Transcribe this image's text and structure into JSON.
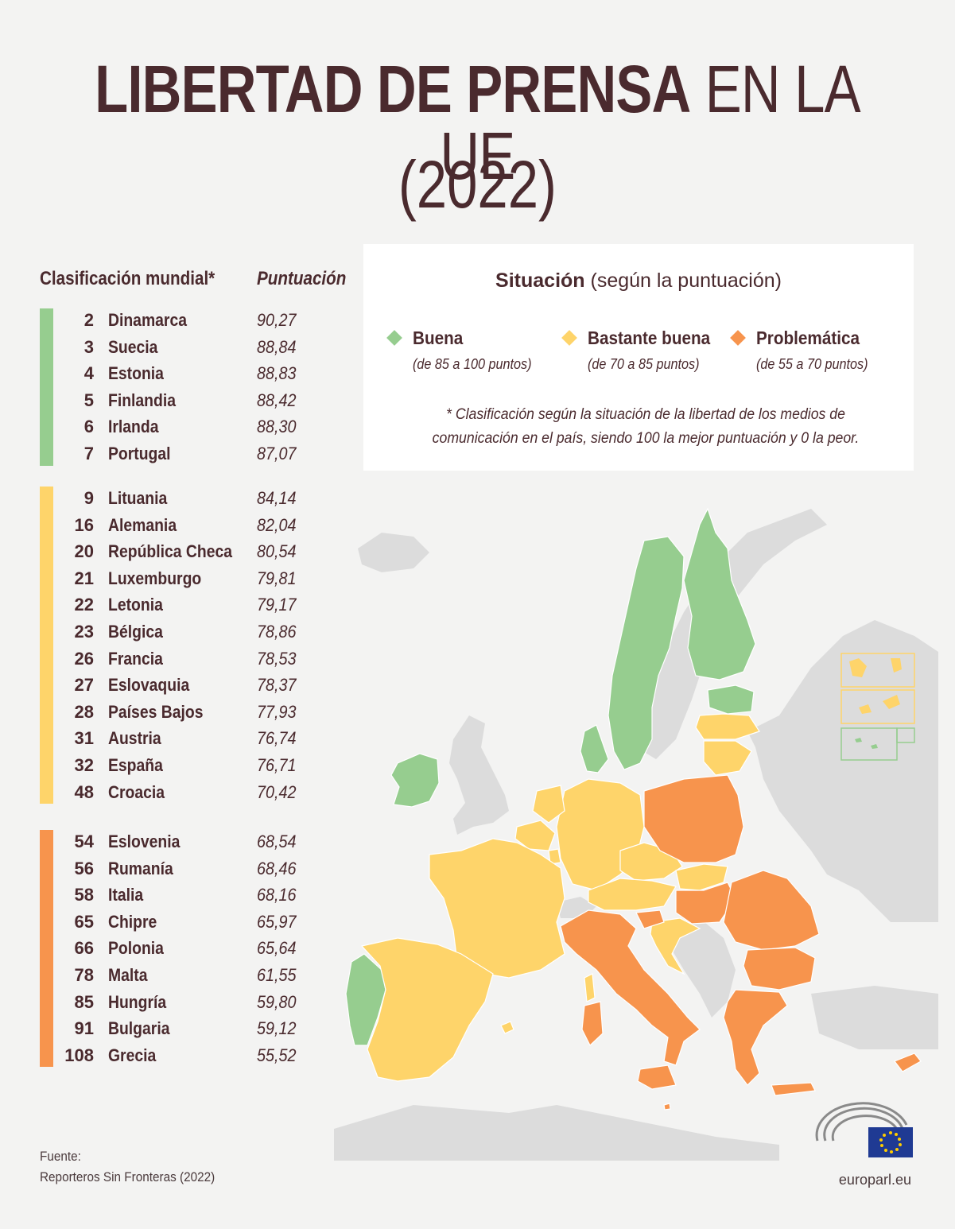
{
  "title": {
    "bold": "LIBERTAD DE PRENSA",
    "light": " EN LA UE",
    "year": "(2022)"
  },
  "table": {
    "rank_header": "Clasificación mundial*",
    "score_header": "Puntuación",
    "groups": [
      {
        "color": "#96cd8f",
        "rows": [
          {
            "rank": "2",
            "country": "Dinamarca",
            "score": "90,27"
          },
          {
            "rank": "3",
            "country": "Suecia",
            "score": "88,84"
          },
          {
            "rank": "4",
            "country": "Estonia",
            "score": "88,83"
          },
          {
            "rank": "5",
            "country": "Finlandia",
            "score": "88,42"
          },
          {
            "rank": "6",
            "country": "Irlanda",
            "score": "88,30"
          },
          {
            "rank": "7",
            "country": "Portugal",
            "score": "87,07"
          }
        ]
      },
      {
        "color": "#fed46a",
        "rows": [
          {
            "rank": "9",
            "country": "Lituania",
            "score": "84,14"
          },
          {
            "rank": "16",
            "country": "Alemania",
            "score": "82,04"
          },
          {
            "rank": "20",
            "country": "República Checa",
            "score": "80,54"
          },
          {
            "rank": "21",
            "country": "Luxemburgo",
            "score": "79,81"
          },
          {
            "rank": "22",
            "country": "Letonia",
            "score": "79,17"
          },
          {
            "rank": "23",
            "country": "Bélgica",
            "score": "78,86"
          },
          {
            "rank": "26",
            "country": "Francia",
            "score": "78,53"
          },
          {
            "rank": "27",
            "country": "Eslovaquia",
            "score": "78,37"
          },
          {
            "rank": "28",
            "country": "Países Bajos",
            "score": "77,93"
          },
          {
            "rank": "31",
            "country": "Austria",
            "score": "76,74"
          },
          {
            "rank": "32",
            "country": "España",
            "score": "76,71"
          },
          {
            "rank": "48",
            "country": "Croacia",
            "score": "70,42"
          }
        ]
      },
      {
        "color": "#f7944d",
        "rows": [
          {
            "rank": "54",
            "country": "Eslovenia",
            "score": "68,54"
          },
          {
            "rank": "56",
            "country": "Rumanía",
            "score": "68,46"
          },
          {
            "rank": "58",
            "country": "Italia",
            "score": "68,16"
          },
          {
            "rank": "65",
            "country": "Chipre",
            "score": "65,97"
          },
          {
            "rank": "66",
            "country": "Polonia",
            "score": "65,64"
          },
          {
            "rank": "78",
            "country": "Malta",
            "score": "61,55"
          },
          {
            "rank": "85",
            "country": "Hungría",
            "score": "59,80"
          },
          {
            "rank": "91",
            "country": "Bulgaria",
            "score": "59,12"
          },
          {
            "rank": "108",
            "country": "Grecia",
            "score": "55,52"
          }
        ]
      }
    ]
  },
  "legend": {
    "title_bold": "Situación",
    "title_rest": " (según la puntuación)",
    "items": [
      {
        "label": "Buena",
        "range": "(de 85 a 100 puntos)",
        "color": "#96cd8f"
      },
      {
        "label": "Bastante buena",
        "range": "(de 70 a 85 puntos)",
        "color": "#fed46a"
      },
      {
        "label": "Problemática",
        "range": "(de 55 a 70 puntos)",
        "color": "#f7944d"
      }
    ],
    "footnote": "* Clasificación según la situación de la libertad de los medios de comunicación en el país, siendo 100 la mejor puntuación y 0 la peor."
  },
  "map": {
    "colors": {
      "good": "#96cd8f",
      "fair": "#fed46a",
      "problem": "#f7944d",
      "non_eu": "#dcdcdc",
      "sea": "#f3f3f2"
    }
  },
  "source": {
    "label": "Fuente:",
    "text": "Reporteros Sin Fronteras (2022)"
  },
  "site": "europarl.eu"
}
